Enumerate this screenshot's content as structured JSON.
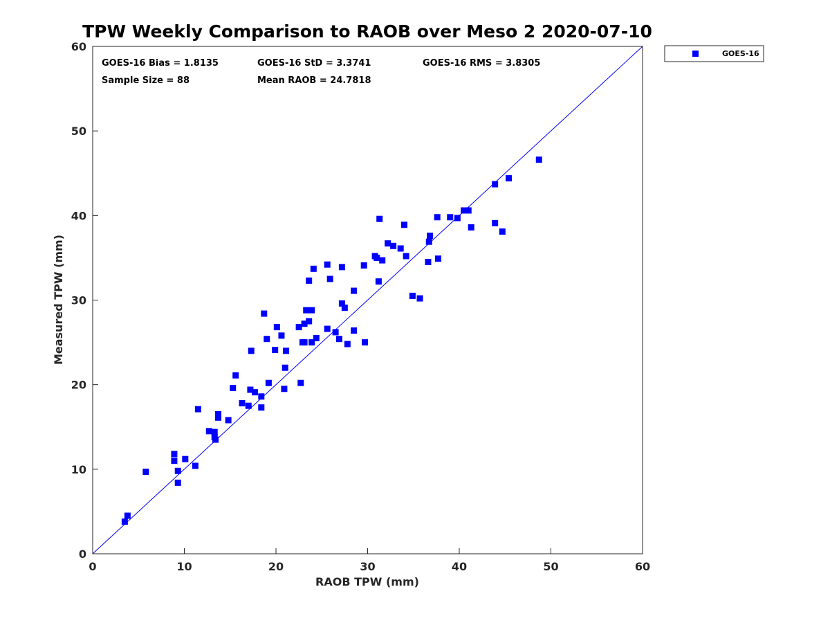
{
  "chart_data": {
    "type": "scatter",
    "title": "TPW Weekly Comparison to RAOB over Meso 2 2020-07-10",
    "xlabel": "RAOB TPW (mm)",
    "ylabel": "Measured TPW (mm)",
    "xlim": [
      0,
      60
    ],
    "ylim": [
      0,
      60
    ],
    "xticks": [
      "0",
      "10",
      "20",
      "30",
      "40",
      "50",
      "60"
    ],
    "yticks": [
      "0",
      "10",
      "20",
      "30",
      "40",
      "50",
      "60"
    ],
    "grid": false,
    "legend_position": "outside-top-right",
    "stats": [
      "GOES-16 Bias = 1.8135",
      "GOES-16 StD = 3.3741",
      "GOES-16 RMS = 3.8305",
      "Sample Size = 88",
      "Mean RAOB = 24.7818"
    ],
    "reference_line": {
      "name": "1:1 line",
      "x": [
        0,
        60
      ],
      "y": [
        0,
        60
      ],
      "color": "#0000ff"
    },
    "series": [
      {
        "name": "GOES-16",
        "color": "#0000ff",
        "marker": "square",
        "points": [
          [
            3.5,
            3.8
          ],
          [
            3.8,
            4.5
          ],
          [
            5.8,
            9.7
          ],
          [
            8.9,
            11.8
          ],
          [
            8.9,
            11.0
          ],
          [
            9.3,
            9.8
          ],
          [
            9.3,
            8.4
          ],
          [
            10.1,
            11.2
          ],
          [
            11.2,
            10.4
          ],
          [
            11.5,
            17.1
          ],
          [
            12.7,
            14.5
          ],
          [
            13.3,
            14.4
          ],
          [
            13.3,
            13.8
          ],
          [
            13.4,
            13.5
          ],
          [
            13.7,
            16.5
          ],
          [
            13.7,
            16.1
          ],
          [
            14.8,
            15.8
          ],
          [
            15.3,
            19.6
          ],
          [
            15.6,
            21.1
          ],
          [
            16.3,
            17.8
          ],
          [
            17.0,
            17.5
          ],
          [
            17.2,
            19.4
          ],
          [
            17.3,
            24.0
          ],
          [
            17.7,
            19.1
          ],
          [
            18.4,
            18.6
          ],
          [
            18.4,
            17.3
          ],
          [
            18.7,
            28.4
          ],
          [
            19.0,
            25.4
          ],
          [
            19.2,
            20.2
          ],
          [
            19.9,
            24.1
          ],
          [
            20.1,
            26.8
          ],
          [
            20.6,
            25.8
          ],
          [
            20.9,
            19.5
          ],
          [
            21.0,
            22.0
          ],
          [
            21.1,
            24.0
          ],
          [
            22.5,
            26.8
          ],
          [
            22.7,
            20.2
          ],
          [
            22.9,
            25.0
          ],
          [
            23.1,
            25.0
          ],
          [
            23.1,
            27.2
          ],
          [
            23.3,
            28.8
          ],
          [
            23.6,
            27.5
          ],
          [
            23.6,
            32.3
          ],
          [
            23.9,
            25.0
          ],
          [
            23.9,
            28.8
          ],
          [
            24.1,
            33.7
          ],
          [
            24.4,
            25.5
          ],
          [
            25.6,
            34.2
          ],
          [
            25.6,
            26.6
          ],
          [
            25.9,
            32.5
          ],
          [
            26.5,
            26.2
          ],
          [
            26.9,
            25.4
          ],
          [
            27.2,
            29.6
          ],
          [
            27.2,
            33.9
          ],
          [
            27.5,
            29.1
          ],
          [
            27.8,
            24.8
          ],
          [
            28.5,
            31.1
          ],
          [
            28.5,
            26.4
          ],
          [
            29.6,
            34.1
          ],
          [
            29.7,
            25.0
          ],
          [
            30.8,
            35.2
          ],
          [
            31.0,
            35.0
          ],
          [
            31.2,
            32.2
          ],
          [
            31.3,
            39.6
          ],
          [
            31.6,
            34.7
          ],
          [
            32.2,
            36.7
          ],
          [
            32.8,
            36.4
          ],
          [
            33.6,
            36.1
          ],
          [
            34.0,
            38.9
          ],
          [
            34.2,
            35.2
          ],
          [
            34.9,
            30.5
          ],
          [
            35.7,
            30.2
          ],
          [
            36.6,
            34.5
          ],
          [
            36.7,
            36.9
          ],
          [
            36.8,
            37.6
          ],
          [
            37.6,
            39.8
          ],
          [
            37.7,
            34.9
          ],
          [
            39.0,
            39.8
          ],
          [
            39.8,
            39.7
          ],
          [
            40.5,
            40.6
          ],
          [
            41.0,
            40.6
          ],
          [
            41.3,
            38.6
          ],
          [
            43.9,
            43.7
          ],
          [
            43.9,
            39.1
          ],
          [
            44.7,
            38.1
          ],
          [
            45.4,
            44.4
          ],
          [
            48.7,
            46.6
          ]
        ]
      }
    ]
  }
}
